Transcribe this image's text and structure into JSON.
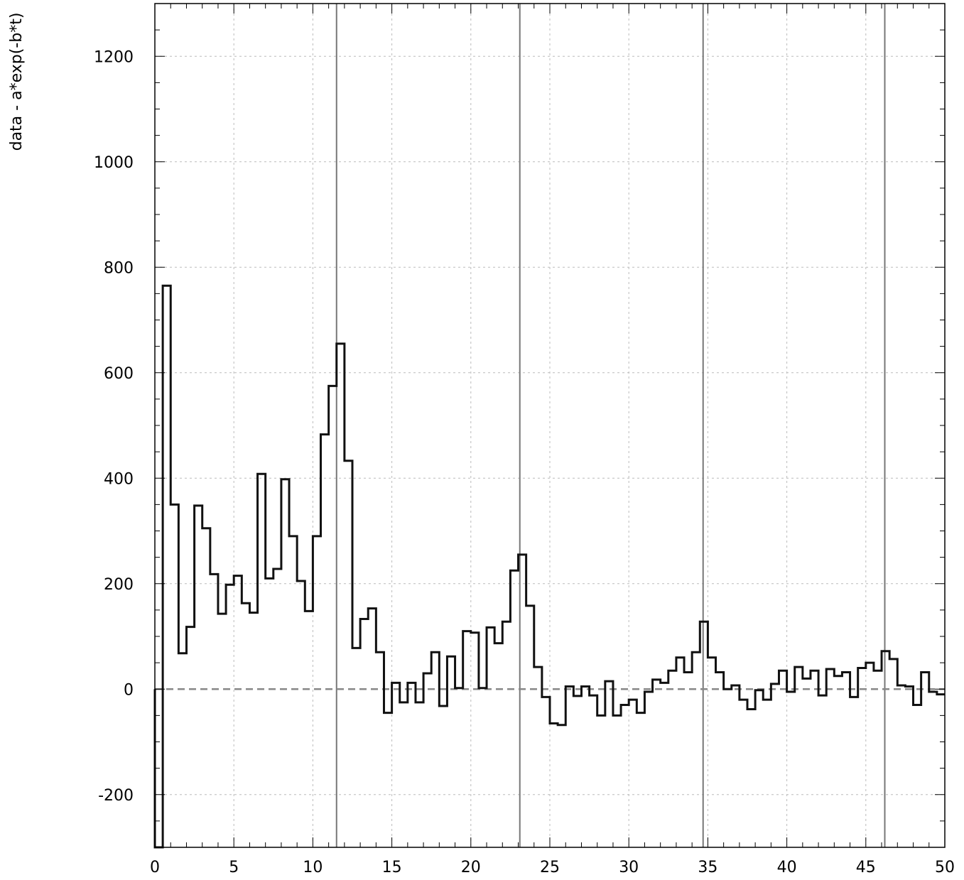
{
  "chart_data": {
    "type": "histogram",
    "title": "",
    "xlabel": "",
    "ylabel": "data - a*exp(-b*t)",
    "xlim": [
      0,
      50
    ],
    "ylim": [
      -300,
      1300
    ],
    "x_ticks": [
      0,
      5,
      10,
      15,
      20,
      25,
      30,
      35,
      40,
      45,
      50
    ],
    "y_ticks": [
      -200,
      0,
      200,
      400,
      600,
      800,
      1000,
      1200
    ],
    "x_tick_labels": [
      "0",
      "5",
      "10",
      "15",
      "20",
      "25",
      "30",
      "35",
      "40",
      "45",
      "50"
    ],
    "y_tick_labels": [
      "-200",
      "0",
      "200",
      "400",
      "600",
      "800",
      "1000",
      "1200"
    ],
    "grid": true,
    "bin_width": 0.5,
    "bin_start": 0,
    "values": [
      -320,
      765,
      350,
      68,
      118,
      348,
      305,
      218,
      143,
      198,
      215,
      163,
      145,
      408,
      210,
      228,
      398,
      290,
      205,
      148,
      290,
      483,
      575,
      655,
      433,
      78,
      133,
      153,
      70,
      -45,
      12,
      -25,
      12,
      -25,
      30,
      70,
      -32,
      62,
      2,
      110,
      107,
      2,
      117,
      87,
      128,
      225,
      255,
      158,
      42,
      -15,
      -65,
      -68,
      5,
      -13,
      5,
      -12,
      -50,
      15,
      -50,
      -30,
      -20,
      -45,
      -5,
      18,
      12,
      35,
      60,
      32,
      70,
      128,
      60,
      32,
      0,
      7,
      -20,
      -38,
      -2,
      -20,
      10,
      35,
      -5,
      42,
      20,
      35,
      -12,
      38,
      25,
      32,
      -15,
      40,
      50,
      35,
      72,
      57,
      7,
      5,
      -30,
      32,
      -5,
      -10
    ],
    "reference_zero_line": 0,
    "vertical_markers": [
      11.5,
      23.1,
      34.7,
      46.2
    ]
  }
}
